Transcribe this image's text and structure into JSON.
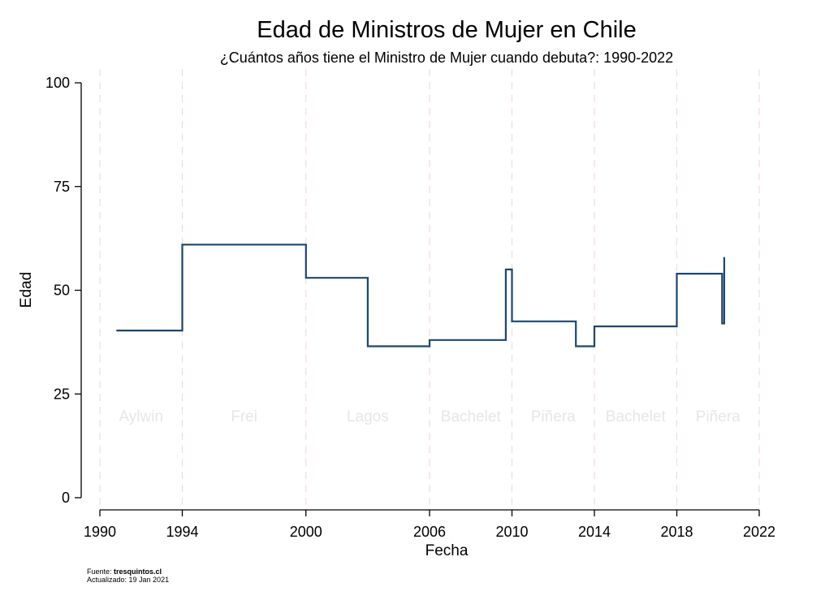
{
  "chart_data": {
    "type": "line",
    "step": true,
    "title": "Edad de Ministros de Mujer en Chile",
    "subtitle": "¿Cuántos años tiene el Ministro de Mujer cuando debuta?: 1990-2022",
    "xlabel": "Fecha",
    "ylabel": "Edad",
    "xlim": [
      1990,
      2022
    ],
    "ylim": [
      0,
      100
    ],
    "x_ticks": [
      1990,
      1994,
      2000,
      2006,
      2010,
      2014,
      2018,
      2022
    ],
    "y_ticks": [
      0,
      25,
      50,
      75,
      100
    ],
    "grid": false,
    "line_color": "#1a476f",
    "vlines": [
      1990,
      1994,
      2000,
      2006,
      2010,
      2014,
      2018,
      2022
    ],
    "periods": [
      {
        "label": "Aylwin",
        "start": 1990,
        "end": 1994
      },
      {
        "label": "Frei",
        "start": 1994,
        "end": 2000
      },
      {
        "label": "Lagos",
        "start": 2000,
        "end": 2006
      },
      {
        "label": "Bachelet",
        "start": 2006,
        "end": 2010
      },
      {
        "label": "Piñera",
        "start": 2010,
        "end": 2014
      },
      {
        "label": "Bachelet",
        "start": 2014,
        "end": 2018
      },
      {
        "label": "Piñera",
        "start": 2018,
        "end": 2022
      }
    ],
    "series": [
      {
        "x": [
          1990.8,
          1994.0,
          2000.0,
          2003.0,
          2006.0,
          2009.7,
          2010.0,
          2013.1,
          2014.0,
          2018.0,
          2020.2,
          2020.3,
          2020.3
        ],
        "y": [
          40.3,
          61.0,
          53.0,
          36.5,
          38.0,
          55.0,
          42.5,
          36.5,
          41.3,
          54.0,
          42.0,
          58.0,
          42.0
        ]
      }
    ]
  },
  "footer": {
    "source_label": "Fuente: ",
    "source_value": "tresquintos.cl",
    "updated": "Actualizado: 19 Jan 2021"
  }
}
